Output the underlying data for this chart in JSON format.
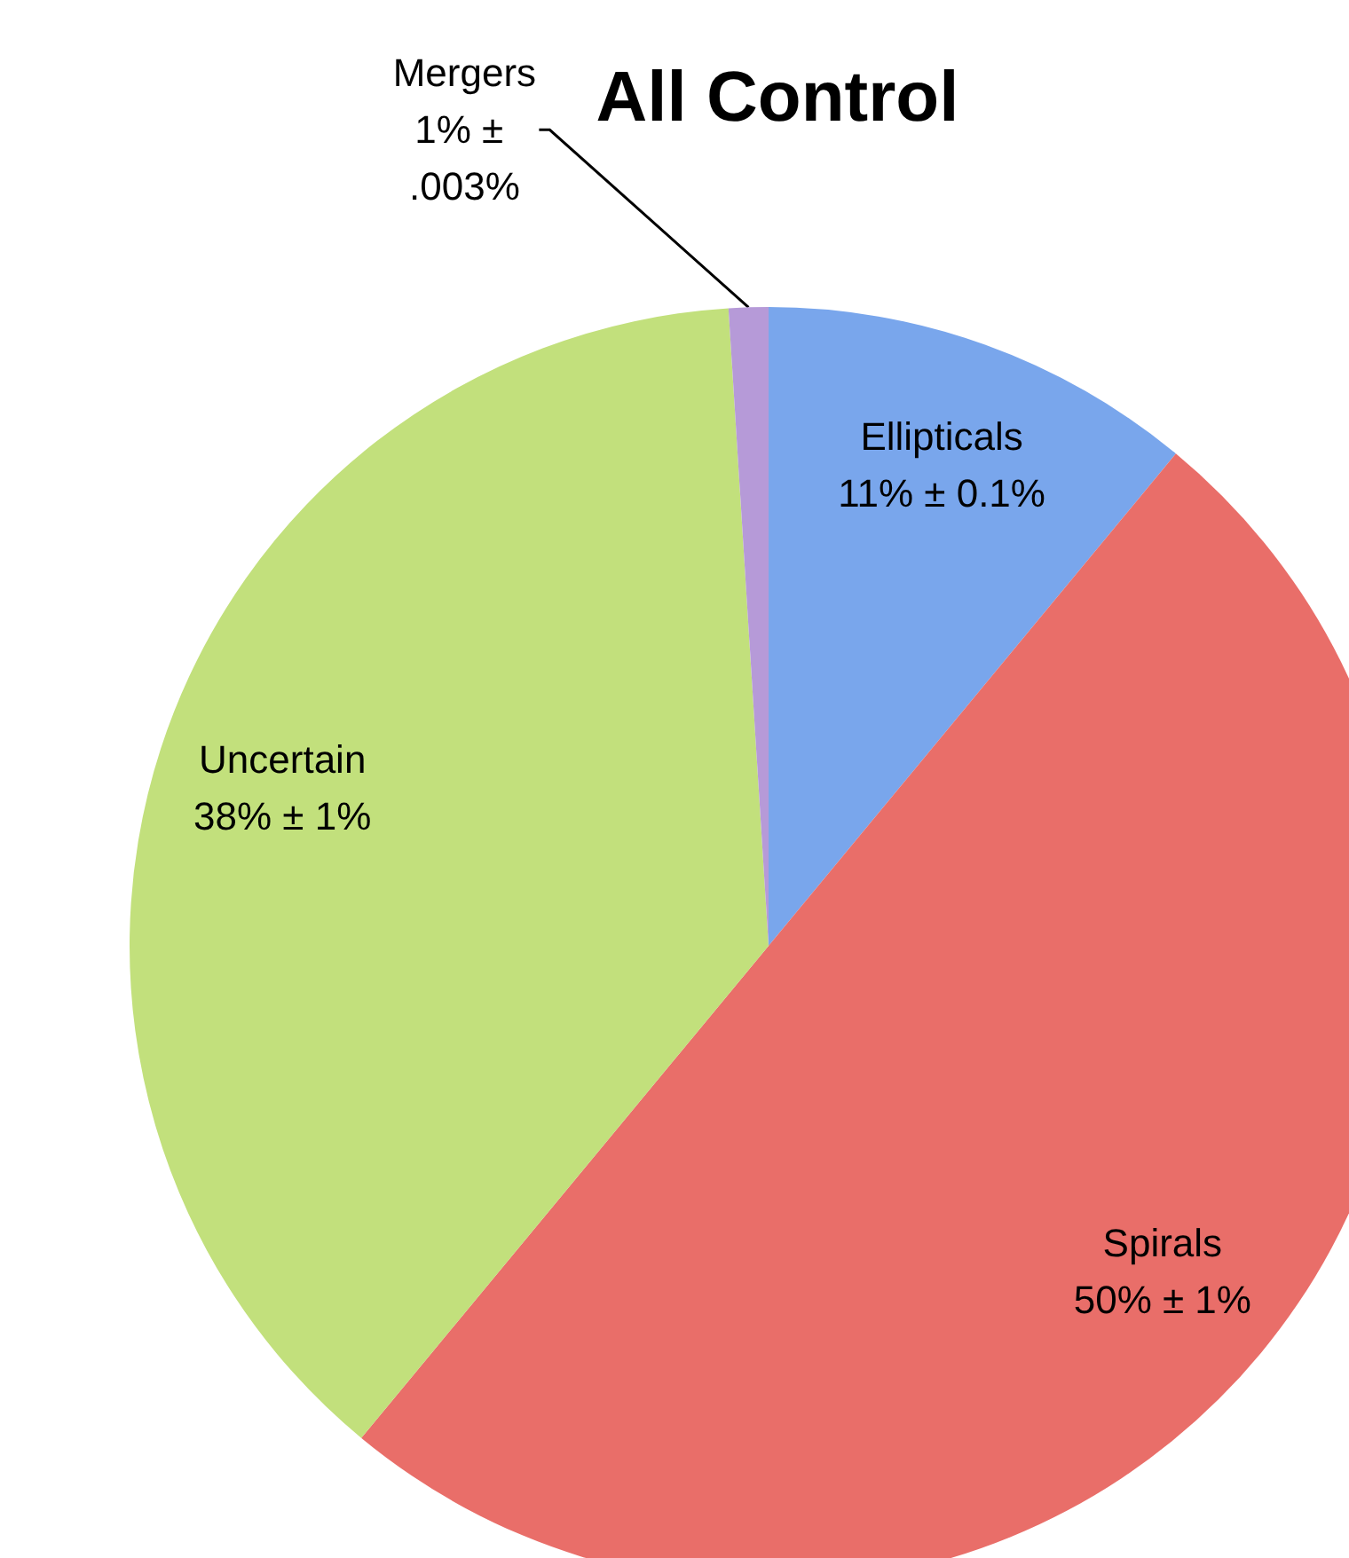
{
  "chart_data": {
    "type": "pie",
    "title": "All Control",
    "categories": [
      "Ellipticals",
      "Spirals",
      "Uncertain",
      "Mergers"
    ],
    "values": [
      11,
      50,
      38,
      1
    ],
    "value_labels": [
      "11% ± 0.1%",
      "50% ± 1%",
      "38% ± 1%",
      "1% ± .003%"
    ],
    "colors": [
      "#79a6ec",
      "#e96e69",
      "#c2e07c",
      "#b69ad8"
    ]
  }
}
